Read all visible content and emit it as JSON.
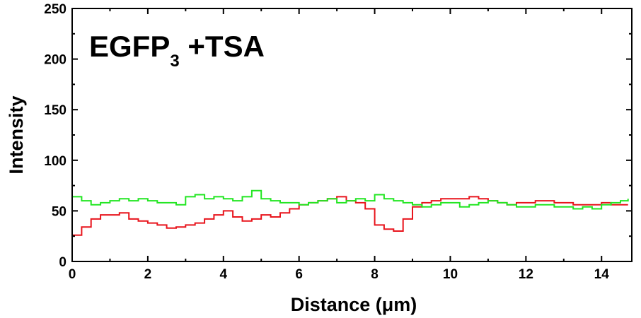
{
  "chart_data": {
    "type": "line",
    "title": {
      "main": "EGFP",
      "subscript": "3",
      "suffix": " +TSA"
    },
    "xlabel": "Distance (μm)",
    "ylabel": "Intensity",
    "xlim": [
      0,
      14.8
    ],
    "ylim": [
      0,
      250
    ],
    "x_ticks": [
      0,
      2,
      4,
      6,
      8,
      10,
      12,
      14
    ],
    "y_ticks": [
      0,
      50,
      100,
      150,
      200,
      250
    ],
    "x_tick_labels": [
      "0",
      "2",
      "4",
      "6",
      "8",
      "10",
      "12",
      "14"
    ],
    "y_tick_labels": [
      "0",
      "50",
      "100",
      "150",
      "200",
      "250"
    ],
    "grid": false,
    "step": "staircase",
    "series": [
      {
        "color": "#e8141c",
        "x": [
          0,
          0.25,
          0.5,
          0.75,
          1,
          1.25,
          1.5,
          1.75,
          2,
          2.25,
          2.5,
          2.75,
          3,
          3.25,
          3.5,
          3.75,
          4,
          4.25,
          4.5,
          4.75,
          5,
          5.25,
          5.5,
          5.75,
          6,
          6.25,
          6.5,
          6.75,
          7,
          7.25,
          7.5,
          7.75,
          8,
          8.25,
          8.5,
          8.75,
          9,
          9.25,
          9.5,
          9.75,
          10,
          10.25,
          10.5,
          10.75,
          11,
          11.25,
          11.5,
          11.75,
          12,
          12.25,
          12.5,
          12.75,
          13,
          13.25,
          13.5,
          13.75,
          14,
          14.25,
          14.5,
          14.7
        ],
        "y": [
          26,
          34,
          42,
          46,
          46,
          48,
          42,
          40,
          38,
          36,
          33,
          34,
          36,
          38,
          42,
          46,
          50,
          44,
          40,
          42,
          46,
          44,
          48,
          52,
          56,
          58,
          60,
          62,
          64,
          60,
          58,
          52,
          36,
          32,
          30,
          42,
          54,
          58,
          60,
          62,
          62,
          62,
          64,
          62,
          60,
          58,
          56,
          58,
          58,
          60,
          60,
          58,
          58,
          56,
          56,
          56,
          58,
          56,
          56,
          56
        ]
      },
      {
        "color": "#22e622",
        "x": [
          0,
          0.25,
          0.5,
          0.75,
          1,
          1.25,
          1.5,
          1.75,
          2,
          2.25,
          2.5,
          2.75,
          3,
          3.25,
          3.5,
          3.75,
          4,
          4.25,
          4.5,
          4.75,
          5,
          5.25,
          5.5,
          5.75,
          6,
          6.25,
          6.5,
          6.75,
          7,
          7.25,
          7.5,
          7.75,
          8,
          8.25,
          8.5,
          8.75,
          9,
          9.25,
          9.5,
          9.75,
          10,
          10.25,
          10.5,
          10.75,
          11,
          11.25,
          11.5,
          11.75,
          12,
          12.25,
          12.5,
          12.75,
          13,
          13.25,
          13.5,
          13.75,
          14,
          14.25,
          14.5,
          14.7
        ],
        "y": [
          64,
          60,
          56,
          58,
          60,
          62,
          60,
          62,
          60,
          58,
          58,
          56,
          64,
          66,
          62,
          64,
          62,
          60,
          64,
          70,
          62,
          60,
          58,
          58,
          56,
          58,
          60,
          62,
          58,
          60,
          62,
          60,
          66,
          62,
          60,
          58,
          56,
          54,
          56,
          58,
          58,
          54,
          56,
          58,
          60,
          58,
          56,
          54,
          54,
          56,
          56,
          54,
          54,
          52,
          54,
          52,
          56,
          58,
          60,
          62
        ]
      }
    ]
  }
}
